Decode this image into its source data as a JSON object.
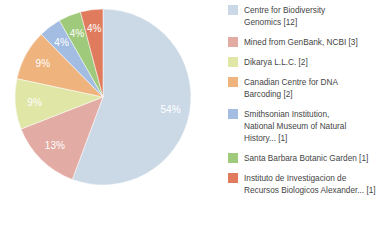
{
  "chart_data": {
    "type": "pie",
    "categories": [
      "Centre for Biodiversity\nGenomics [12]",
      "Mined from GenBank, NCBI [3]",
      "Dikarya L.L.C. [2]",
      "Canadian Centre for DNA\nBarcoding [2]",
      "Smithsonian Institution,\nNational Museum of Natural\nHistory... [1]",
      "Santa Barbara Botanic Garden [1]",
      "Instituto de Investigacion de\nRecursos Biologicos Alexander... [1]"
    ],
    "values": [
      54,
      13,
      9,
      9,
      4,
      4,
      4
    ],
    "value_labels": [
      "54%",
      "13%",
      "9%",
      "9%",
      "4%",
      "4%",
      "4%"
    ],
    "colors": [
      "#cbd9e7",
      "#e2aba3",
      "#dfe6a6",
      "#efb37d",
      "#a3bde2",
      "#9fca7b",
      "#e07b5d"
    ],
    "data_labels": true,
    "legend": "right"
  }
}
